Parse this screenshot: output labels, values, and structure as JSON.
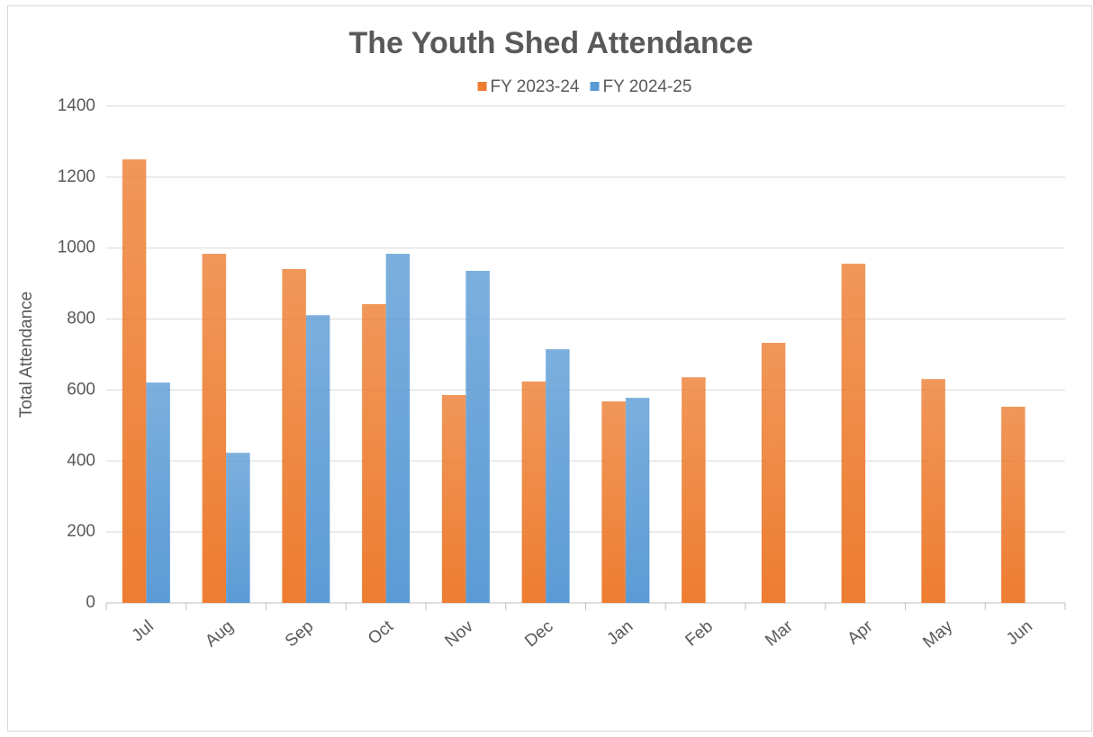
{
  "chart_data": {
    "type": "bar",
    "title": "The Youth Shed Attendance",
    "y_label": "Total Attendance",
    "categories": [
      "Jul",
      "Aug",
      "Sep",
      "Oct",
      "Nov",
      "Dec",
      "Jan",
      "Feb",
      "Mar",
      "Apr",
      "May",
      "Jun"
    ],
    "series": [
      {
        "name": "FY 2023-24",
        "color": "#ed7d31",
        "values": [
          1250,
          984,
          941,
          842,
          586,
          624,
          568,
          636,
          733,
          956,
          631,
          553
        ]
      },
      {
        "name": "FY 2024-25",
        "color": "#5b9bd5",
        "values": [
          621,
          423,
          811,
          984,
          936,
          715,
          578,
          null,
          null,
          null,
          null,
          null
        ]
      }
    ],
    "ylim": [
      0,
      1400
    ],
    "yticks": [
      0,
      200,
      400,
      600,
      800,
      1000,
      1200,
      1400
    ],
    "grid": true,
    "legend": "top"
  }
}
